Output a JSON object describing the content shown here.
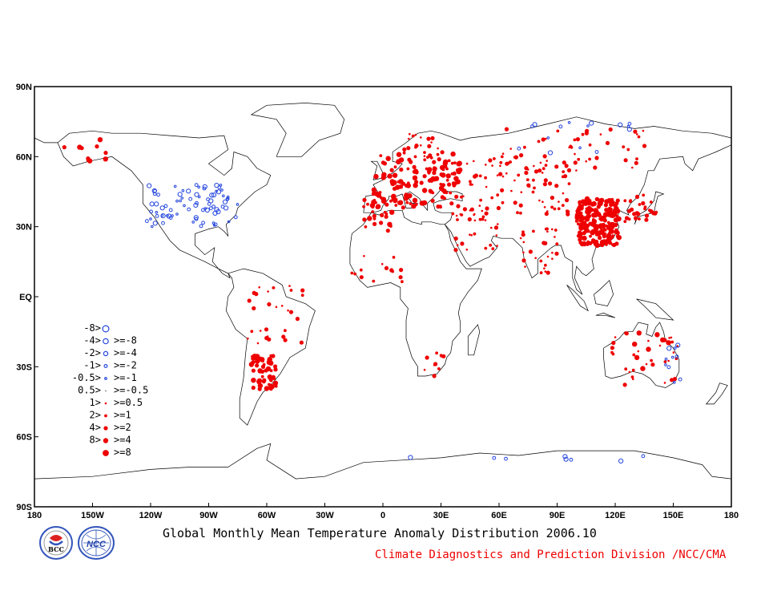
{
  "title": "Global Monthly Mean Temperature Anomaly Distribution 2006.10",
  "credit": "Climate Diagnostics and Prediction Division /NCC/CMA",
  "colors": {
    "cold": "#2244dd",
    "warm": "#ee0000",
    "credit": "#ee0000",
    "land": "#000000"
  },
  "logos": {
    "bcc": {
      "icon": "bcc-logo-icon",
      "text": "BCC"
    },
    "ncc": {
      "icon": "ncc-logo-icon",
      "text": "NCC"
    }
  },
  "chart_data": {
    "type": "scatter",
    "x_ticks": [
      "180",
      "150W",
      "120W",
      "90W",
      "60W",
      "30W",
      "0",
      "30E",
      "60E",
      "90E",
      "120E",
      "150E",
      "180"
    ],
    "y_ticks": [
      "90N",
      "60N",
      "30N",
      "EQ",
      "30S",
      "60S",
      "90S"
    ],
    "xlim": [
      -180,
      180
    ],
    "ylim": [
      -90,
      90
    ],
    "legend": [
      {
        "label": "-8>",
        "sign": "cold",
        "size": 5
      },
      {
        "label": "-4>  >=-8",
        "sign": "cold",
        "size": 4
      },
      {
        "label": "-2>  >=-4",
        "sign": "cold",
        "size": 3
      },
      {
        "label": "-1>  >=-2",
        "sign": "cold",
        "size": 2
      },
      {
        "label": "-0.5>  >=-1",
        "sign": "cold",
        "size": 1
      },
      {
        "label": "0.5>  >=-0.5",
        "sign": "neutral",
        "size": 0
      },
      {
        "label": "1>  >=0.5",
        "sign": "warm",
        "size": 1
      },
      {
        "label": "2>  >=1",
        "sign": "warm",
        "size": 2
      },
      {
        "label": "4>  >=2",
        "sign": "warm",
        "size": 3
      },
      {
        "label": "8>  >=4",
        "sign": "warm",
        "size": 4
      },
      {
        "label": ">=8",
        "sign": "warm",
        "size": 5
      }
    ],
    "clusters": [
      {
        "region": "Europe",
        "lon": [
          -5,
          40
        ],
        "lat": [
          38,
          62
        ],
        "count": 150,
        "sign": "warm",
        "size": [
          2,
          4
        ]
      },
      {
        "region": "Iberia-NorthAfrica",
        "lon": [
          -10,
          5
        ],
        "lat": [
          28,
          42
        ],
        "count": 25,
        "sign": "warm",
        "size": [
          2,
          4
        ]
      },
      {
        "region": "Russia-CentralAsia",
        "lon": [
          40,
          100
        ],
        "lat": [
          35,
          60
        ],
        "count": 90,
        "sign": "warm",
        "size": [
          1,
          3
        ]
      },
      {
        "region": "China",
        "lon": [
          100,
          122
        ],
        "lat": [
          22,
          42
        ],
        "count": 220,
        "sign": "warm",
        "size": [
          2,
          4
        ]
      },
      {
        "region": "Japan-Korea",
        "lon": [
          125,
          142
        ],
        "lat": [
          32,
          44
        ],
        "count": 30,
        "sign": "warm",
        "size": [
          2,
          3
        ]
      },
      {
        "region": "India",
        "lon": [
          70,
          90
        ],
        "lat": [
          10,
          30
        ],
        "count": 30,
        "sign": "warm",
        "size": [
          1,
          3
        ]
      },
      {
        "region": "MiddleEast",
        "lon": [
          35,
          60
        ],
        "lat": [
          20,
          38
        ],
        "count": 30,
        "sign": "warm",
        "size": [
          1,
          3
        ]
      },
      {
        "region": "Siberia",
        "lon": [
          60,
          140
        ],
        "lat": [
          55,
          72
        ],
        "count": 45,
        "sign": "warm",
        "size": [
          1,
          3
        ]
      },
      {
        "region": "Alaska",
        "lon": [
          -165,
          -140
        ],
        "lat": [
          58,
          70
        ],
        "count": 10,
        "sign": "warm",
        "size": [
          3,
          4
        ]
      },
      {
        "region": "NorthAmerica",
        "lon": [
          -122,
          -75
        ],
        "lat": [
          30,
          48
        ],
        "count": 80,
        "sign": "cold",
        "size": [
          1,
          3
        ]
      },
      {
        "region": "SouthAmerica-N",
        "lon": [
          -70,
          -40
        ],
        "lat": [
          -20,
          5
        ],
        "count": 30,
        "sign": "warm",
        "size": [
          1,
          3
        ]
      },
      {
        "region": "Argentina",
        "lon": [
          -68,
          -55
        ],
        "lat": [
          -40,
          -25
        ],
        "count": 55,
        "sign": "warm",
        "size": [
          2,
          4
        ]
      },
      {
        "region": "WestAfrica",
        "lon": [
          -18,
          10
        ],
        "lat": [
          5,
          18
        ],
        "count": 15,
        "sign": "warm",
        "size": [
          1,
          3
        ]
      },
      {
        "region": "SouthAfrica",
        "lon": [
          18,
          32
        ],
        "lat": [
          -34,
          -24
        ],
        "count": 10,
        "sign": "warm",
        "size": [
          1,
          3
        ]
      },
      {
        "region": "Australia",
        "lon": [
          115,
          153
        ],
        "lat": [
          -40,
          -15
        ],
        "count": 40,
        "sign": "warm",
        "size": [
          1,
          4
        ]
      },
      {
        "region": "AustraliaEast",
        "lon": [
          145,
          155
        ],
        "lat": [
          -38,
          -20
        ],
        "count": 10,
        "sign": "cold",
        "size": [
          1,
          3
        ]
      },
      {
        "region": "Antarctica",
        "lon": [
          10,
          140
        ],
        "lat": [
          -71,
          -68
        ],
        "count": 8,
        "sign": "cold",
        "size": [
          2,
          3
        ]
      },
      {
        "region": "Scandinavia",
        "lon": [
          10,
          30
        ],
        "lat": [
          60,
          70
        ],
        "count": 20,
        "sign": "warm",
        "size": [
          1,
          3
        ]
      },
      {
        "region": "NorthSiberiaCold",
        "lon": [
          70,
          130
        ],
        "lat": [
          60,
          75
        ],
        "count": 15,
        "sign": "cold",
        "size": [
          1,
          3
        ]
      }
    ]
  }
}
